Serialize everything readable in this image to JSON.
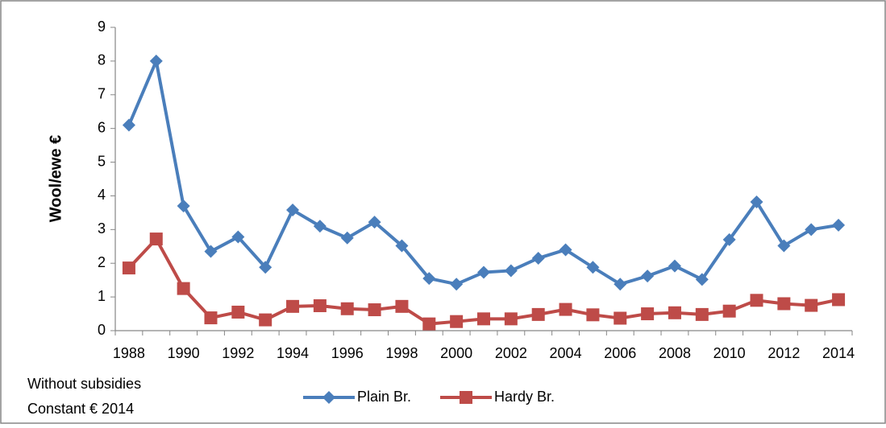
{
  "chart_data": {
    "type": "line",
    "y_label": "Wool/ewe €",
    "annotations": [
      "Without subsidies",
      "Constant € 2014"
    ],
    "categories": [
      "1988",
      null,
      "1990",
      null,
      "1992",
      null,
      "1994",
      null,
      "1996",
      null,
      "1998",
      null,
      "2000",
      null,
      "2002",
      null,
      "2004",
      null,
      "2006",
      null,
      "2008",
      null,
      "2010",
      null,
      "2012",
      null,
      "2014"
    ],
    "series": [
      {
        "name": "Plain Br.",
        "color": "#4a7ebb",
        "marker": "diamond",
        "values": [
          6.1,
          8.0,
          3.7,
          2.35,
          2.78,
          1.88,
          3.58,
          3.1,
          2.75,
          3.22,
          2.52,
          1.55,
          1.38,
          1.73,
          1.78,
          2.15,
          2.4,
          1.88,
          1.38,
          1.62,
          1.92,
          1.52,
          2.7,
          3.82,
          2.52,
          3.0,
          3.13
        ]
      },
      {
        "name": "Hardy Br.",
        "color": "#be4b48",
        "marker": "square",
        "values": [
          1.86,
          2.72,
          1.25,
          0.38,
          0.55,
          0.32,
          0.72,
          0.74,
          0.65,
          0.62,
          0.72,
          0.2,
          0.27,
          0.35,
          0.35,
          0.48,
          0.63,
          0.47,
          0.37,
          0.5,
          0.53,
          0.48,
          0.58,
          0.9,
          0.8,
          0.75,
          0.92
        ]
      }
    ],
    "ylim": [
      0,
      9
    ],
    "yticks": [
      0,
      1,
      2,
      3,
      4,
      5,
      6,
      7,
      8,
      9
    ],
    "grid": false,
    "legend": "bottom"
  }
}
